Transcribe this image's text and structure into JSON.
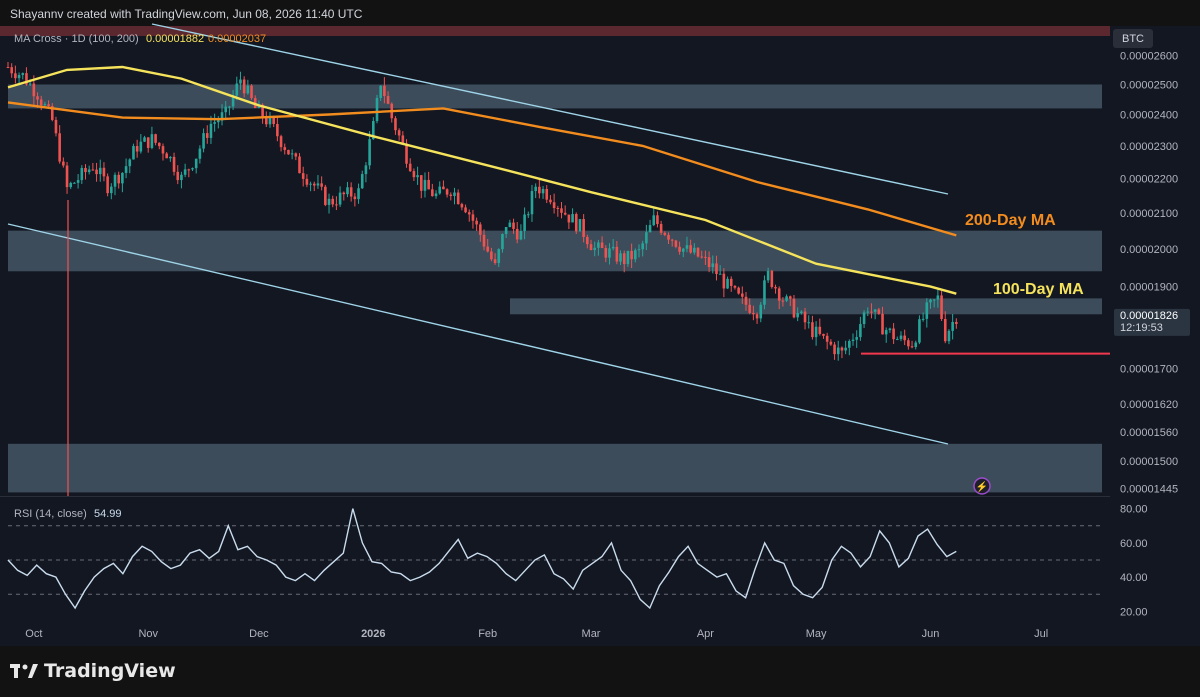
{
  "header": {
    "attribution": "Shayannv created with TradingView.com, Jun 08, 2026 11:40 UTC"
  },
  "indicator": {
    "label": "MA Cross · 1D (100, 200)",
    "ma100_value": "0.00001882",
    "ma200_value": "0.00002037"
  },
  "price_axis": {
    "currency": "BTC",
    "current_price": "0.00001826",
    "countdown": "12:19:53"
  },
  "annotations": {
    "ma200_label": "200-Day MA",
    "ma100_label": "100-Day MA"
  },
  "rsi": {
    "label": "RSI (14, close)",
    "value": "54.99"
  },
  "footer": {
    "brand": "TradingView"
  },
  "colors": {
    "background": "#121212",
    "plot_bg": "#131722",
    "up_candle": "#26a69a",
    "down_candle": "#ef5350",
    "ma100": "#f5e35c",
    "ma200": "#f28c1e",
    "channel": "#9fd4e8",
    "zone": "#6f8fa0",
    "support_line": "#f2384d",
    "rsi_line": "#c9dcee"
  },
  "chart_data": [
    {
      "type": "candlestick",
      "title": "MA Cross · 1D (100, 200)",
      "x_ticks": [
        "Oct",
        "Nov",
        "Dec",
        "2026",
        "Feb",
        "Mar",
        "Apr",
        "May",
        "Jun",
        "Jul"
      ],
      "y_ticks": [
        "0.00002600",
        "0.00002500",
        "0.00002400",
        "0.00002300",
        "0.00002200",
        "0.00002100",
        "0.00002000",
        "0.00001900",
        "0.00001826",
        "0.00001700",
        "0.00001620",
        "0.00001560",
        "0.00001500",
        "0.00001445"
      ],
      "y_scale": "log",
      "ylim": [
        1.43e-05,
        2.67e-05
      ],
      "close_path": [
        [
          "2025-09-24",
          2.56e-05
        ],
        [
          "2025-09-28",
          2.53e-05
        ],
        [
          "2025-10-02",
          2.47e-05
        ],
        [
          "2025-10-06",
          2.38e-05
        ],
        [
          "2025-10-10",
          2.17e-05
        ],
        [
          "2025-10-13",
          2.2e-05
        ],
        [
          "2025-10-17",
          2.24e-05
        ],
        [
          "2025-10-21",
          2.18e-05
        ],
        [
          "2025-10-25",
          2.22e-05
        ],
        [
          "2025-10-29",
          2.3e-05
        ],
        [
          "2025-11-02",
          2.32e-05
        ],
        [
          "2025-11-06",
          2.28e-05
        ],
        [
          "2025-11-10",
          2.2e-05
        ],
        [
          "2025-11-14",
          2.27e-05
        ],
        [
          "2025-11-18",
          2.37e-05
        ],
        [
          "2025-11-22",
          2.4e-05
        ],
        [
          "2025-11-26",
          2.52e-05
        ],
        [
          "2025-11-30",
          2.42e-05
        ],
        [
          "2025-12-04",
          2.37e-05
        ],
        [
          "2025-12-08",
          2.3e-05
        ],
        [
          "2025-12-12",
          2.23e-05
        ],
        [
          "2025-12-16",
          2.18e-05
        ],
        [
          "2025-12-20",
          2.13e-05
        ],
        [
          "2025-12-24",
          2.15e-05
        ],
        [
          "2025-12-28",
          2.16e-05
        ],
        [
          "2026-01-01",
          2.36e-05
        ],
        [
          "2026-01-03",
          2.51e-05
        ],
        [
          "2026-01-06",
          2.39e-05
        ],
        [
          "2026-01-10",
          2.27e-05
        ],
        [
          "2026-01-14",
          2.18e-05
        ],
        [
          "2026-01-18",
          2.15e-05
        ],
        [
          "2026-01-22",
          2.17e-05
        ],
        [
          "2026-01-26",
          2.12e-05
        ],
        [
          "2026-01-30",
          2.04e-05
        ],
        [
          "2026-02-03",
          1.95e-05
        ],
        [
          "2026-02-06",
          2.07e-05
        ],
        [
          "2026-02-10",
          2.04e-05
        ],
        [
          "2026-02-14",
          2.18e-05
        ],
        [
          "2026-02-18",
          2.15e-05
        ],
        [
          "2026-02-22",
          2.1e-05
        ],
        [
          "2026-02-26",
          2.06e-05
        ],
        [
          "2026-03-02",
          2e-05
        ],
        [
          "2026-03-06",
          1.99e-05
        ],
        [
          "2026-03-10",
          1.97e-05
        ],
        [
          "2026-03-14",
          1.99e-05
        ],
        [
          "2026-03-18",
          2.08e-05
        ],
        [
          "2026-03-22",
          2.04e-05
        ],
        [
          "2026-03-26",
          2e-05
        ],
        [
          "2026-03-30",
          1.98e-05
        ],
        [
          "2026-04-03",
          1.95e-05
        ],
        [
          "2026-04-07",
          1.9e-05
        ],
        [
          "2026-04-11",
          1.86e-05
        ],
        [
          "2026-04-15",
          1.84e-05
        ],
        [
          "2026-04-18",
          1.93e-05
        ],
        [
          "2026-04-22",
          1.87e-05
        ],
        [
          "2026-04-26",
          1.83e-05
        ],
        [
          "2026-04-30",
          1.79e-05
        ],
        [
          "2026-05-04",
          1.76e-05
        ],
        [
          "2026-05-08",
          1.735e-05
        ],
        [
          "2026-05-12",
          1.79e-05
        ],
        [
          "2026-05-15",
          1.85e-05
        ],
        [
          "2026-05-19",
          1.8e-05
        ],
        [
          "2026-05-23",
          1.77e-05
        ],
        [
          "2026-05-27",
          1.76e-05
        ],
        [
          "2026-05-31",
          1.84e-05
        ],
        [
          "2026-06-03",
          1.87e-05
        ],
        [
          "2026-06-05",
          1.78e-05
        ],
        [
          "2026-06-08",
          1.826e-05
        ]
      ],
      "series": [
        {
          "name": "100-Day MA",
          "points": [
            [
              "2025-09-24",
              2.49e-05
            ],
            [
              "2025-10-10",
              2.55e-05
            ],
            [
              "2025-10-25",
              2.56e-05
            ],
            [
              "2025-11-10",
              2.52e-05
            ],
            [
              "2025-12-01",
              2.43e-05
            ],
            [
              "2026-01-01",
              2.33e-05
            ],
            [
              "2026-02-01",
              2.24e-05
            ],
            [
              "2026-03-01",
              2.16e-05
            ],
            [
              "2026-04-01",
              2.08e-05
            ],
            [
              "2026-05-01",
              1.96e-05
            ],
            [
              "2026-06-01",
              1.9e-05
            ],
            [
              "2026-06-08",
              1.882e-05
            ]
          ]
        },
        {
          "name": "200-Day MA",
          "points": [
            [
              "2025-09-24",
              2.44e-05
            ],
            [
              "2025-10-25",
              2.39e-05
            ],
            [
              "2025-11-20",
              2.385e-05
            ],
            [
              "2025-12-20",
              2.4e-05
            ],
            [
              "2026-01-20",
              2.42e-05
            ],
            [
              "2026-02-15",
              2.36e-05
            ],
            [
              "2026-03-15",
              2.3e-05
            ],
            [
              "2026-04-15",
              2.19e-05
            ],
            [
              "2026-05-15",
              2.11e-05
            ],
            [
              "2026-06-08",
              2.037e-05
            ]
          ]
        }
      ],
      "zones": [
        {
          "from": 2.42e-05,
          "to": 2.5e-05
        },
        {
          "from": 1.94e-05,
          "to": 2.05e-05
        },
        {
          "from": 1.83e-05,
          "to": 1.87e-05
        },
        {
          "from": 1.437e-05,
          "to": 1.535e-05
        }
      ],
      "support_level": 1.735e-05
    },
    {
      "type": "line",
      "title": "RSI (14, close)",
      "y_ticks": [
        "80.00",
        "60.00",
        "40.00",
        "20.00"
      ],
      "ylim": [
        15,
        85
      ],
      "levels": [
        70,
        50,
        30
      ],
      "values": [
        50,
        44,
        41,
        47,
        42,
        40,
        30,
        22,
        32,
        40,
        45,
        48,
        42,
        52,
        58,
        55,
        49,
        45,
        47,
        54,
        56,
        51,
        55,
        70,
        56,
        58,
        52,
        50,
        47,
        40,
        38,
        42,
        38,
        44,
        49,
        54,
        80,
        60,
        49,
        48,
        43,
        42,
        38,
        40,
        43,
        48,
        55,
        62,
        51,
        54,
        52,
        48,
        42,
        38,
        44,
        50,
        53,
        42,
        39,
        33,
        44,
        48,
        52,
        60,
        44,
        38,
        27,
        22,
        35,
        43,
        52,
        58,
        48,
        44,
        40,
        42,
        32,
        28,
        45,
        60,
        50,
        48,
        35,
        30,
        28,
        34,
        50,
        58,
        54,
        46,
        52,
        67,
        60,
        46,
        51,
        64,
        68,
        59,
        52,
        55
      ]
    }
  ]
}
